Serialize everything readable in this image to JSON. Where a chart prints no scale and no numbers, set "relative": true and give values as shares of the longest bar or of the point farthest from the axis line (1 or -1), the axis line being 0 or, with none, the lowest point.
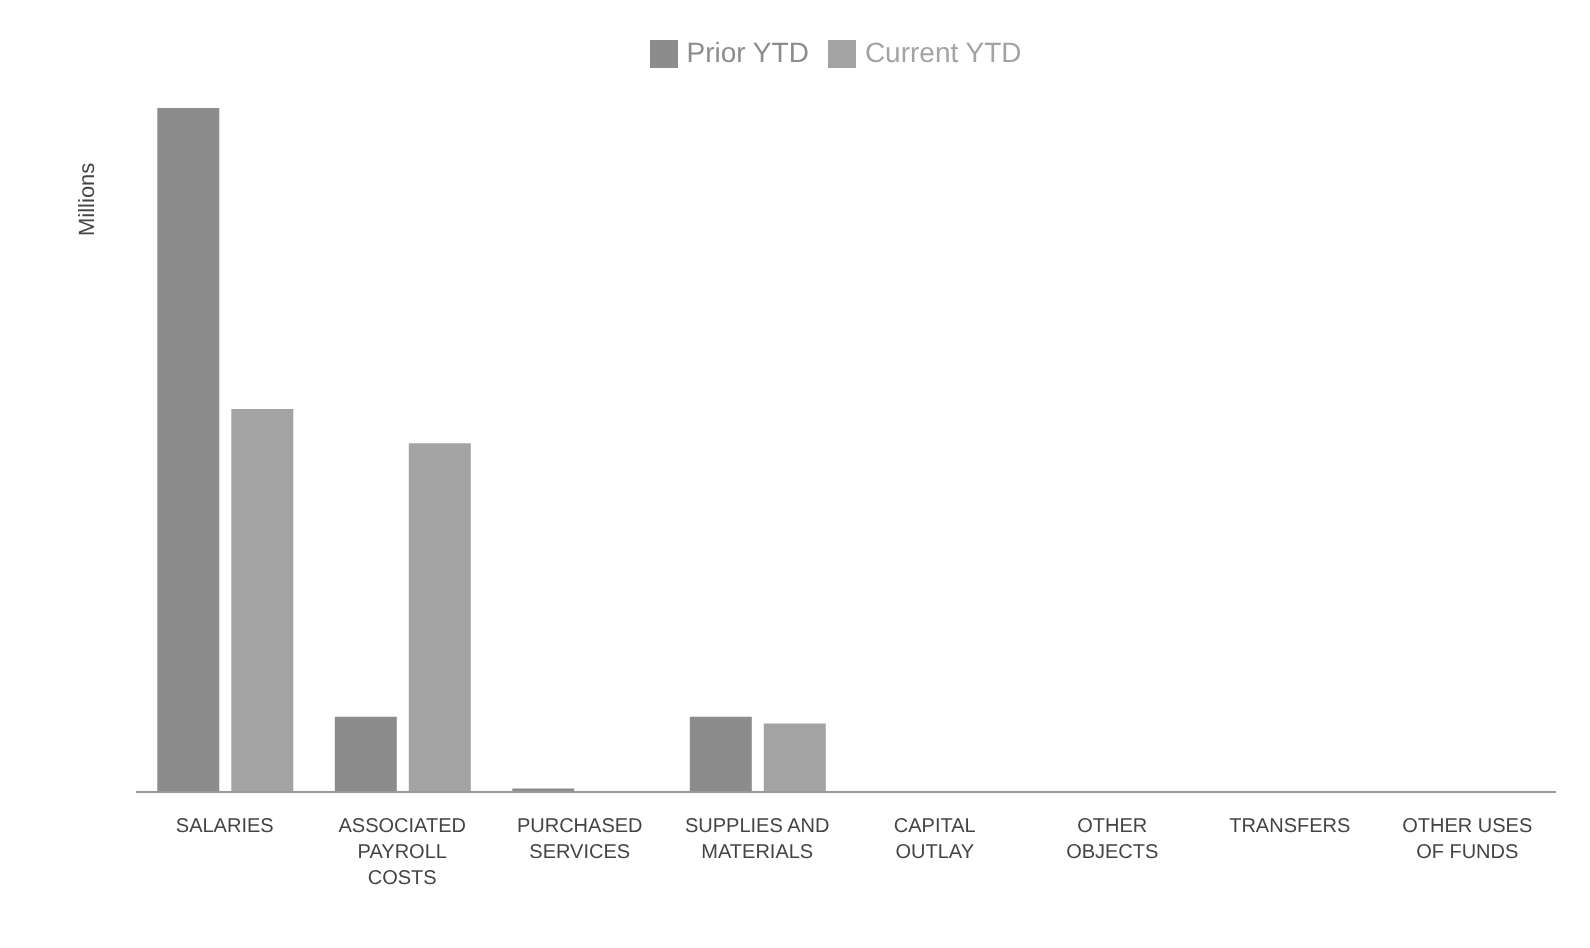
{
  "chart_data": {
    "type": "bar",
    "relative": true,
    "ylabel": "Millions",
    "legend": "top",
    "grid": false,
    "categories": [
      "SALARIES",
      "ASSOCIATED PAYROLL COSTS",
      "PURCHASED SERVICES",
      "SUPPLIES AND MATERIALS",
      "CAPITAL OUTLAY",
      "OTHER OBJECTS",
      "TRANSFERS",
      "OTHER USES OF FUNDS"
    ],
    "series": [
      {
        "name": "Prior YTD",
        "color": "#8c8c8c",
        "values": [
          1,
          0.11,
          0.005,
          0.11,
          0,
          0,
          0,
          0
        ]
      },
      {
        "name": "Current YTD",
        "color": "#a3a3a3",
        "values": [
          0.56,
          0.51,
          0,
          0.1,
          0,
          0,
          0,
          0
        ]
      }
    ]
  }
}
